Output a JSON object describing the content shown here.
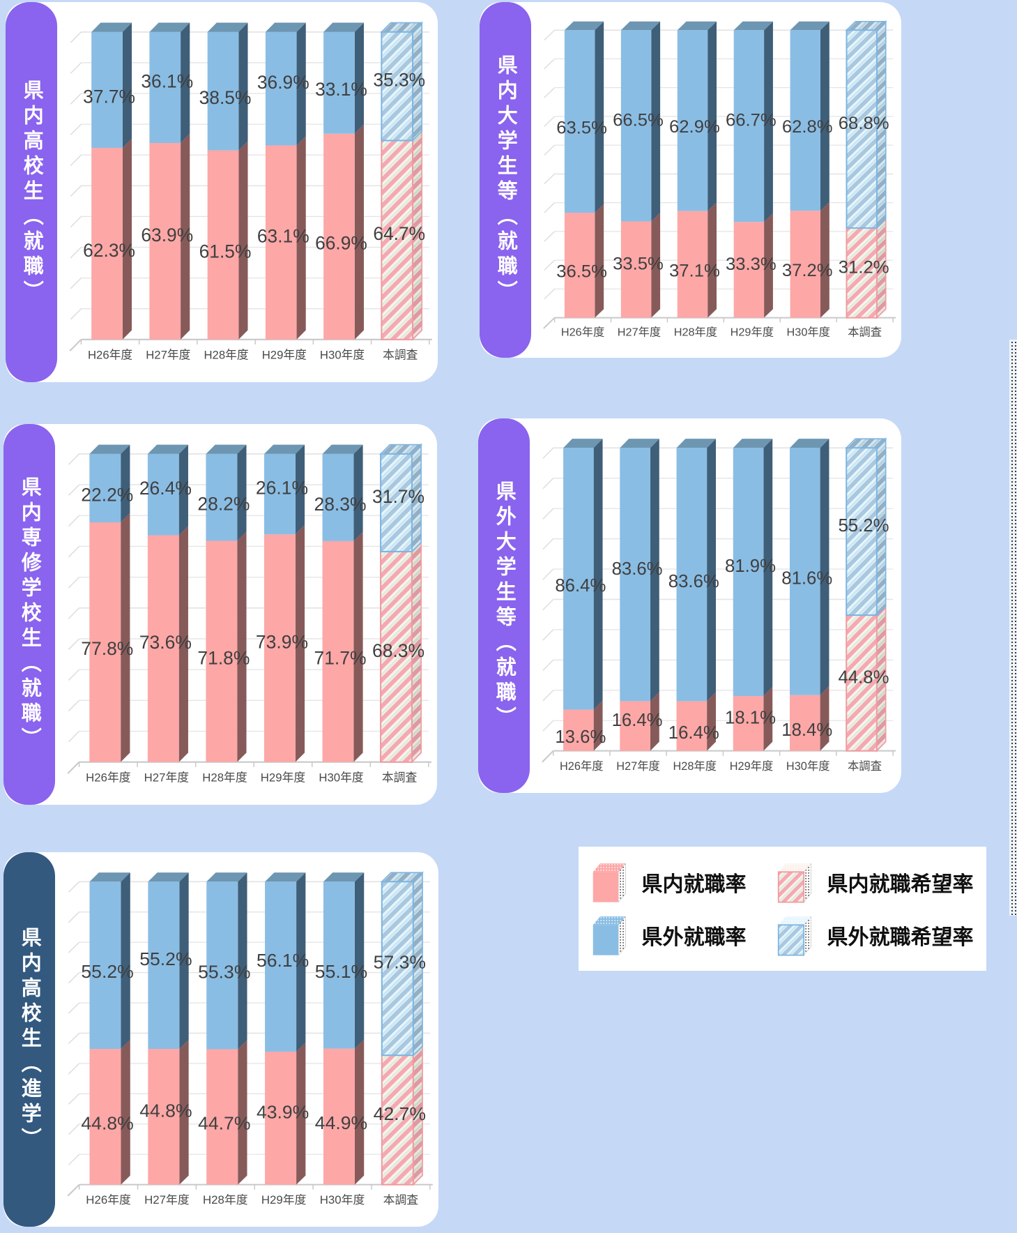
{
  "page": {
    "background": "#C5D8F6",
    "edge_perforation": true
  },
  "colors": {
    "background": "#C5D8F6",
    "panel": "#FFFFFF",
    "accent_purple": "#8A63EE",
    "accent_navy": "#33597F",
    "pink_front": "#FDA7A7",
    "pink_side": "#875A5A",
    "blue_front": "#8ABDE4",
    "blue_side": "#3F5E78",
    "blue_top": "#6D96B2",
    "hatch_pink_border": "#F09AA0",
    "hatch_blue_border": "#7CB5E2",
    "label_color": "#3F3F3F",
    "axis_label_color": "#4A4A4A",
    "grid_color": "#E4E4E4"
  },
  "legend": {
    "items": [
      {
        "label": "県内就職率",
        "swatch": "pink-solid"
      },
      {
        "label": "県内就職希望率",
        "swatch": "pink-hatched"
      },
      {
        "label": "県外就職率",
        "swatch": "blue-solid"
      },
      {
        "label": "県外就職希望率",
        "swatch": "blue-hatched"
      }
    ]
  },
  "chart_data": [
    {
      "type": "bar",
      "stacked": true,
      "title": "県内高校生（就職）",
      "accent": "#8A63EE",
      "categories": [
        "H26年度",
        "H27年度",
        "H28年度",
        "H29年度",
        "H30年度",
        "本調査"
      ],
      "series": [
        {
          "name": "県内就職率",
          "color": "pink",
          "values": [
            62.3,
            63.9,
            61.5,
            63.1,
            66.9,
            64.7
          ]
        },
        {
          "name": "県外就職率",
          "color": "blue",
          "values": [
            37.7,
            36.1,
            38.5,
            36.9,
            33.1,
            35.3
          ]
        }
      ],
      "hatched_category_index": 5,
      "ylim": [
        0,
        100
      ],
      "grid": true,
      "legend_position": "shared-bottom-right"
    },
    {
      "type": "bar",
      "stacked": true,
      "title": "県内大学生等（就職）",
      "accent": "#8A63EE",
      "categories": [
        "H26年度",
        "H27年度",
        "H28年度",
        "H29年度",
        "H30年度",
        "本調査"
      ],
      "series": [
        {
          "name": "県内就職率",
          "color": "pink",
          "values": [
            36.5,
            33.5,
            37.1,
            33.3,
            37.2,
            31.2
          ]
        },
        {
          "name": "県外就職率",
          "color": "blue",
          "values": [
            63.5,
            66.5,
            62.9,
            66.7,
            62.8,
            68.8
          ]
        }
      ],
      "hatched_category_index": 5,
      "ylim": [
        0,
        100
      ],
      "grid": true,
      "legend_position": "shared-bottom-right"
    },
    {
      "type": "bar",
      "stacked": true,
      "title": "県内専修学校生（就職）",
      "accent": "#8A63EE",
      "categories": [
        "H26年度",
        "H27年度",
        "H28年度",
        "H29年度",
        "H30年度",
        "本調査"
      ],
      "series": [
        {
          "name": "県内就職率",
          "color": "pink",
          "values": [
            77.8,
            73.6,
            71.8,
            73.9,
            71.7,
            68.3
          ]
        },
        {
          "name": "県外就職率",
          "color": "blue",
          "values": [
            22.2,
            26.4,
            28.2,
            26.1,
            28.3,
            31.7
          ]
        }
      ],
      "hatched_category_index": 5,
      "ylim": [
        0,
        100
      ],
      "grid": true,
      "legend_position": "shared-bottom-right"
    },
    {
      "type": "bar",
      "stacked": true,
      "title": "県外大学生等（就職）",
      "accent": "#8A63EE",
      "categories": [
        "H26年度",
        "H27年度",
        "H28年度",
        "H29年度",
        "H30年度",
        "本調査"
      ],
      "series": [
        {
          "name": "県内就職率",
          "color": "pink",
          "values": [
            13.6,
            16.4,
            16.4,
            18.1,
            18.4,
            44.8
          ]
        },
        {
          "name": "県外就職率",
          "color": "blue",
          "values": [
            86.4,
            83.6,
            83.6,
            81.9,
            81.6,
            55.2
          ]
        }
      ],
      "hatched_category_index": 5,
      "ylim": [
        0,
        100
      ],
      "grid": true,
      "legend_position": "shared-bottom-right"
    },
    {
      "type": "bar",
      "stacked": true,
      "title": "県内高校生（進学）",
      "accent": "#33597F",
      "categories": [
        "H26年度",
        "H27年度",
        "H28年度",
        "H29年度",
        "H30年度",
        "本調査"
      ],
      "series": [
        {
          "name": "県内就職率",
          "color": "pink",
          "values": [
            44.8,
            44.8,
            44.7,
            43.9,
            44.9,
            42.7
          ]
        },
        {
          "name": "県外就職率",
          "color": "blue",
          "values": [
            55.2,
            55.2,
            55.3,
            56.1,
            55.1,
            57.3
          ]
        }
      ],
      "hatched_category_index": 5,
      "ylim": [
        0,
        100
      ],
      "grid": true,
      "legend_position": "shared-bottom-right"
    }
  ]
}
